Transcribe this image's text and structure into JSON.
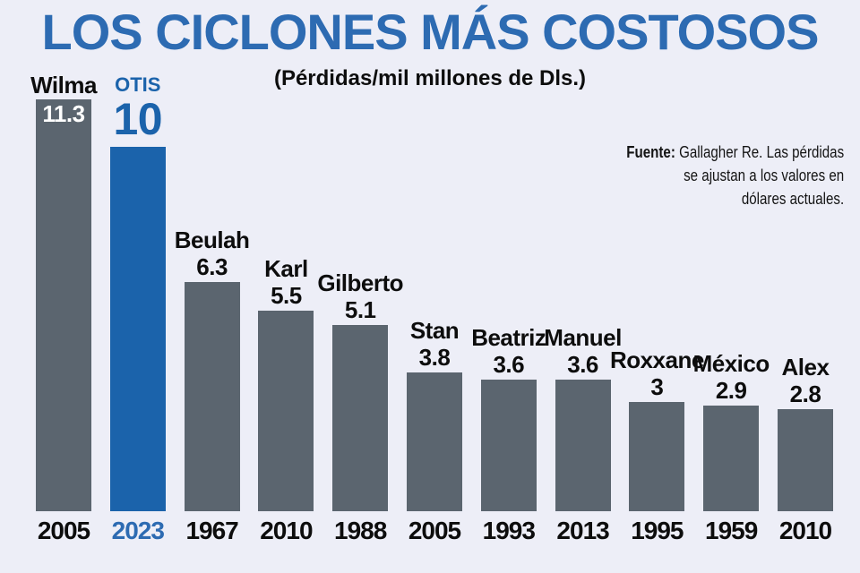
{
  "title": "LOS CICLONES MÁS COSTOSOS",
  "subtitle": "(Pérdidas/mil millones de Dls.)",
  "source": {
    "label": "Fuente:",
    "line1": "Gallagher Re. Las pérdidas",
    "line2": "se ajustan a los valores en",
    "line3": "dólares actuales."
  },
  "colors": {
    "background": "#edeef7",
    "bar_gray": "#5b656f",
    "bar_blue": "#1b63ab",
    "title_blue": "#2d6bb2",
    "text_black": "#0d0d0d",
    "value_inside_white": "#ffffff"
  },
  "chart_data": {
    "type": "bar",
    "title": "LOS CICLONES MÁS COSTOSOS",
    "subtitle": "(Pérdidas/mil millones de Dls.)",
    "ylabel": "Pérdidas (mil millones de Dls.)",
    "ylim": [
      0,
      11.5
    ],
    "grid": false,
    "legend": "none",
    "categories": [
      "Wilma",
      "OTIS",
      "Beulah",
      "Karl",
      "Gilberto",
      "Stan",
      "Beatriz",
      "Manuel",
      "Roxxane",
      "México",
      "Alex"
    ],
    "values": [
      11.3,
      10,
      6.3,
      5.5,
      5.1,
      3.8,
      3.6,
      3.6,
      3,
      2.9,
      2.8
    ],
    "bars": [
      {
        "name": "Wilma",
        "value": 11.3,
        "value_label": "11.3",
        "year": "2005",
        "highlight": false,
        "value_inside": true
      },
      {
        "name": "OTIS",
        "value": 10,
        "value_label": "10",
        "year": "2023",
        "highlight": true,
        "value_inside": false
      },
      {
        "name": "Beulah",
        "value": 6.3,
        "value_label": "6.3",
        "year": "1967",
        "highlight": false,
        "value_inside": false
      },
      {
        "name": "Karl",
        "value": 5.5,
        "value_label": "5.5",
        "year": "2010",
        "highlight": false,
        "value_inside": false
      },
      {
        "name": "Gilberto",
        "value": 5.1,
        "value_label": "5.1",
        "year": "1988",
        "highlight": false,
        "value_inside": false
      },
      {
        "name": "Stan",
        "value": 3.8,
        "value_label": "3.8",
        "year": "2005",
        "highlight": false,
        "value_inside": false
      },
      {
        "name": "Beatriz",
        "value": 3.6,
        "value_label": "3.6",
        "year": "1993",
        "highlight": false,
        "value_inside": false
      },
      {
        "name": "Manuel",
        "value": 3.6,
        "value_label": "3.6",
        "year": "2013",
        "highlight": false,
        "value_inside": false
      },
      {
        "name": "Roxxane",
        "value": 3,
        "value_label": "3",
        "year": "1995",
        "highlight": false,
        "value_inside": false
      },
      {
        "name": "México",
        "value": 2.9,
        "value_label": "2.9",
        "year": "1959",
        "highlight": false,
        "value_inside": false
      },
      {
        "name": "Alex",
        "value": 2.8,
        "value_label": "2.8",
        "year": "2010",
        "highlight": false,
        "value_inside": false
      }
    ]
  }
}
